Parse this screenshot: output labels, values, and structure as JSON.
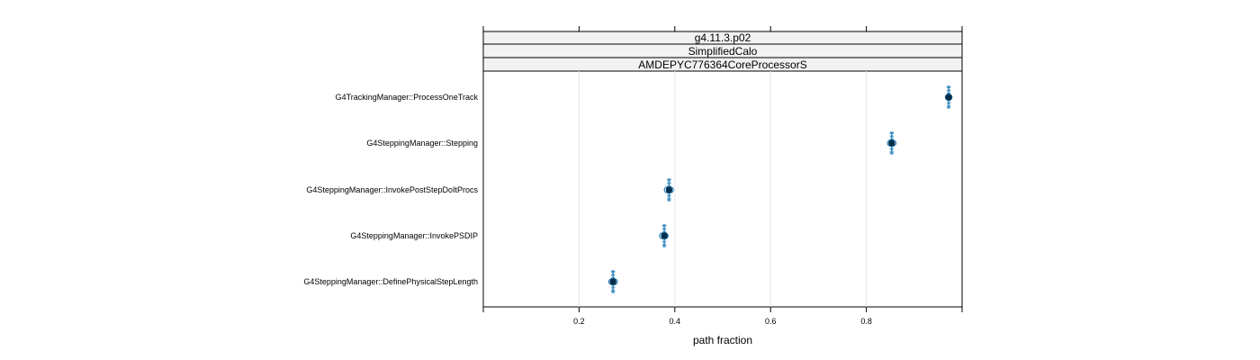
{
  "chart_data": {
    "type": "scatter",
    "strips": [
      "g4.11.3.p02",
      "SimplifiedCalo",
      "AMDEPYC776364CoreProcessorS"
    ],
    "categories": [
      "G4TrackingManager::ProcessOneTrack",
      "G4SteppingManager::Stepping",
      "G4SteppingManager::InvokePostStepDoItProcs",
      "G4SteppingManager::InvokePSDIP",
      "G4SteppingManager::DefinePhysicalStepLength"
    ],
    "xlabel": "path fraction",
    "xlim": [
      0,
      1.0
    ],
    "xticks": [
      0.2,
      0.4,
      0.6,
      0.8
    ],
    "xtick_labels": [
      "0.2",
      "0.4",
      "0.6",
      "0.8"
    ],
    "grid": true,
    "colors": {
      "dark": "#00304d",
      "mid": "#1f77b4",
      "light": "#6baed6",
      "grid": "#e6e6e6"
    },
    "points": [
      {
        "category": 0,
        "value": 0.972,
        "low": 0.965,
        "high": 0.976,
        "others": [
          0.971,
          0.973
        ]
      },
      {
        "category": 1,
        "value": 0.853,
        "low": 0.848,
        "high": 0.857,
        "others": [
          0.85,
          0.856
        ]
      },
      {
        "category": 2,
        "value": 0.388,
        "low": 0.381,
        "high": 0.393,
        "others": [
          0.384,
          0.391
        ]
      },
      {
        "category": 3,
        "value": 0.378,
        "low": 0.372,
        "high": 0.382,
        "others": [
          0.374,
          0.38
        ]
      },
      {
        "category": 4,
        "value": 0.271,
        "low": 0.265,
        "high": 0.275,
        "others": [
          0.268,
          0.274
        ]
      }
    ]
  }
}
